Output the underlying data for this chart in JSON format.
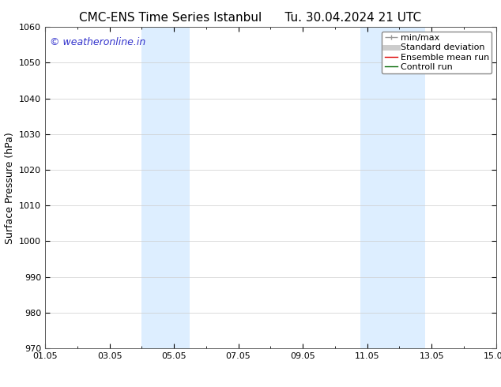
{
  "title_left": "CMC-ENS Time Series Istanbul",
  "title_right": "Tu. 30.04.2024 21 UTC",
  "ylabel": "Surface Pressure (hPa)",
  "xlim": [
    0,
    14
  ],
  "ylim": [
    970,
    1060
  ],
  "yticks": [
    970,
    980,
    990,
    1000,
    1010,
    1020,
    1030,
    1040,
    1050,
    1060
  ],
  "xtick_labels": [
    "01.05",
    "03.05",
    "05.05",
    "07.05",
    "09.05",
    "11.05",
    "13.05",
    "15.05"
  ],
  "xtick_positions": [
    0,
    2,
    4,
    6,
    8,
    10,
    12,
    14
  ],
  "shaded_bands": [
    {
      "x_start": 3.0,
      "x_end": 4.5
    },
    {
      "x_start": 9.8,
      "x_end": 11.8
    }
  ],
  "shaded_color": "#ddeeff",
  "bg_color": "#ffffff",
  "watermark_text": "© weatheronline.in",
  "watermark_color": "#3333cc",
  "watermark_fontsize": 9,
  "legend_items": [
    {
      "label": "min/max",
      "color": "#999999",
      "lw": 1
    },
    {
      "label": "Standard deviation",
      "color": "#cccccc",
      "lw": 5
    },
    {
      "label": "Ensemble mean run",
      "color": "#dd0000",
      "lw": 1
    },
    {
      "label": "Controll run",
      "color": "#006600",
      "lw": 1
    }
  ],
  "grid_color": "#cccccc",
  "title_fontsize": 11,
  "ylabel_fontsize": 9,
  "tick_fontsize": 8,
  "legend_fontsize": 8
}
